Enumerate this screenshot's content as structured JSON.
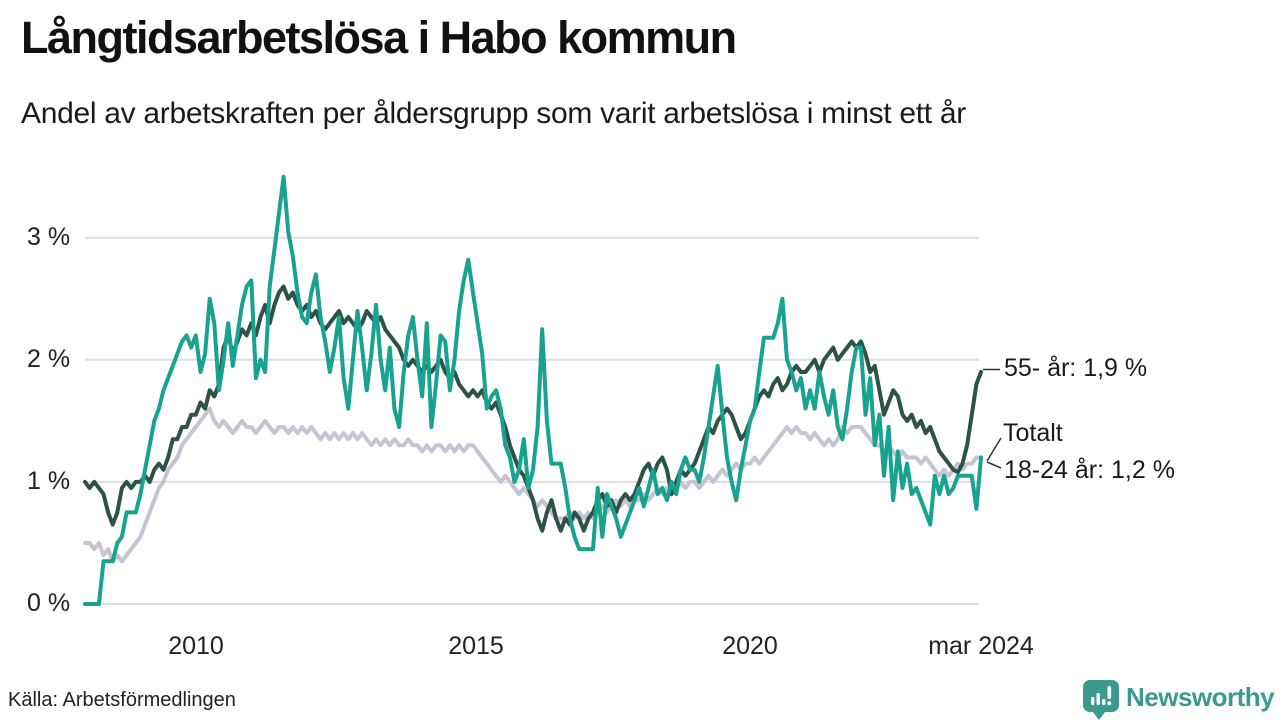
{
  "header": {
    "title": "Långtidsarbetslösa i Habo kommun",
    "subtitle": "Andel av arbetskraften per åldersgrupp som varit arbetslösa i minst ett år"
  },
  "footer": {
    "source": "Källa: Arbetsförmedlingen",
    "brand": "Newsworthy",
    "brand_color": "#3B9A8F"
  },
  "chart_data": {
    "type": "line",
    "title": "Långtidsarbetslösa i Habo kommun",
    "subtitle": "Andel av arbetskraften per åldersgrupp som varit arbetslösa i minst ett år",
    "x_start": "2008-01",
    "x_end": "2024-03",
    "x_interval": "month",
    "ylim": [
      0,
      3.6
    ],
    "grid": true,
    "legend_position": "right-edge-annotations",
    "colors": {
      "grid": "#dedede",
      "tick_text": "#222222",
      "annotation_text": "#1a1a1a"
    },
    "yticks": [
      {
        "value": 3,
        "label": "3 %"
      },
      {
        "value": 2,
        "label": "2 %"
      },
      {
        "value": 1,
        "label": "1 %"
      },
      {
        "value": 0,
        "label": "0 %"
      }
    ],
    "xticks": [
      {
        "label": "2010"
      },
      {
        "label": "2015"
      },
      {
        "label": "2020"
      },
      {
        "label": "mar 2024"
      }
    ],
    "annotations": [
      {
        "label": "55- år: 1,9 %",
        "series": "55- år",
        "end_value": "1,9 %"
      },
      {
        "label": "Totalt",
        "series": "Totalt"
      },
      {
        "label": "18-24 år: 1,2 %",
        "series": "18-24 år",
        "end_value": "1,2 %"
      }
    ],
    "series": [
      {
        "name": "Totalt",
        "color": "#C6C4D2",
        "values": [
          0.5,
          0.5,
          0.45,
          0.5,
          0.4,
          0.45,
          0.35,
          0.4,
          0.35,
          0.4,
          0.45,
          0.5,
          0.55,
          0.65,
          0.75,
          0.85,
          0.95,
          1.0,
          1.1,
          1.15,
          1.2,
          1.3,
          1.35,
          1.4,
          1.45,
          1.5,
          1.55,
          1.6,
          1.5,
          1.45,
          1.5,
          1.45,
          1.4,
          1.45,
          1.5,
          1.45,
          1.45,
          1.4,
          1.45,
          1.5,
          1.45,
          1.4,
          1.45,
          1.45,
          1.4,
          1.45,
          1.4,
          1.45,
          1.4,
          1.45,
          1.4,
          1.35,
          1.4,
          1.35,
          1.4,
          1.35,
          1.4,
          1.35,
          1.4,
          1.35,
          1.4,
          1.35,
          1.3,
          1.35,
          1.3,
          1.35,
          1.3,
          1.35,
          1.3,
          1.3,
          1.35,
          1.3,
          1.3,
          1.25,
          1.3,
          1.25,
          1.3,
          1.3,
          1.25,
          1.3,
          1.25,
          1.3,
          1.25,
          1.3,
          1.3,
          1.25,
          1.2,
          1.15,
          1.1,
          1.05,
          1.0,
          1.05,
          1.0,
          0.95,
          0.9,
          0.95,
          0.9,
          0.85,
          0.8,
          0.85,
          0.8,
          0.75,
          0.7,
          0.7,
          0.7,
          0.75,
          0.7,
          0.75,
          0.7,
          0.75,
          0.7,
          0.75,
          0.8,
          0.75,
          0.8,
          0.85,
          0.8,
          0.85,
          0.8,
          0.85,
          0.85,
          0.9,
          0.85,
          0.9,
          0.95,
          0.9,
          0.95,
          0.9,
          0.95,
          1.0,
          0.95,
          1.0,
          1.0,
          0.95,
          1.0,
          1.05,
          1.0,
          1.05,
          1.1,
          1.05,
          1.1,
          1.15,
          1.1,
          1.15,
          1.15,
          1.2,
          1.15,
          1.2,
          1.25,
          1.3,
          1.35,
          1.4,
          1.45,
          1.4,
          1.45,
          1.4,
          1.4,
          1.35,
          1.4,
          1.35,
          1.3,
          1.35,
          1.3,
          1.35,
          1.45,
          1.4,
          1.45,
          1.45,
          1.45,
          1.4,
          1.35,
          1.3,
          1.3,
          1.25,
          1.3,
          1.25,
          1.2,
          1.25,
          1.2,
          1.2,
          1.2,
          1.15,
          1.2,
          1.15,
          1.1,
          1.05,
          1.1,
          1.05,
          1.1,
          1.15,
          1.1,
          1.15,
          1.15,
          1.2,
          1.2
        ]
      },
      {
        "name": "55- år",
        "color": "#2D5246",
        "values": [
          1.0,
          0.95,
          1.0,
          0.95,
          0.9,
          0.75,
          0.65,
          0.75,
          0.95,
          1.0,
          0.95,
          1.0,
          1.0,
          1.05,
          1.0,
          1.1,
          1.15,
          1.1,
          1.2,
          1.35,
          1.35,
          1.45,
          1.45,
          1.55,
          1.55,
          1.65,
          1.6,
          1.75,
          1.7,
          1.8,
          2.1,
          2.2,
          2.05,
          2.15,
          2.25,
          2.2,
          2.3,
          2.2,
          2.35,
          2.45,
          2.3,
          2.45,
          2.55,
          2.6,
          2.5,
          2.55,
          2.45,
          2.4,
          2.45,
          2.35,
          2.4,
          2.3,
          2.25,
          2.3,
          2.35,
          2.4,
          2.3,
          2.35,
          2.3,
          2.25,
          2.3,
          2.4,
          2.35,
          2.3,
          2.35,
          2.25,
          2.2,
          2.15,
          2.1,
          2.0,
          1.95,
          2.0,
          1.95,
          1.9,
          1.95,
          1.9,
          1.95,
          2.0,
          1.9,
          1.85,
          1.9,
          1.8,
          1.75,
          1.7,
          1.75,
          1.7,
          1.75,
          1.65,
          1.6,
          1.65,
          1.55,
          1.45,
          1.3,
          1.2,
          1.1,
          1.05,
          0.95,
          0.85,
          0.7,
          0.6,
          0.75,
          0.85,
          0.7,
          0.6,
          0.7,
          0.65,
          0.75,
          0.7,
          0.6,
          0.7,
          0.75,
          0.85,
          0.9,
          0.8,
          0.85,
          0.75,
          0.85,
          0.9,
          0.85,
          0.9,
          1.0,
          1.1,
          1.15,
          1.05,
          1.15,
          1.2,
          1.1,
          0.9,
          1.0,
          1.1,
          1.05,
          1.1,
          1.15,
          1.25,
          1.35,
          1.45,
          1.4,
          1.5,
          1.55,
          1.6,
          1.55,
          1.45,
          1.35,
          1.4,
          1.5,
          1.6,
          1.7,
          1.75,
          1.7,
          1.8,
          1.85,
          1.75,
          1.8,
          1.9,
          1.95,
          1.9,
          1.9,
          1.95,
          2.0,
          1.9,
          2.0,
          2.05,
          2.1,
          2.0,
          2.05,
          2.1,
          2.15,
          2.1,
          2.15,
          2.05,
          1.9,
          1.95,
          1.75,
          1.55,
          1.65,
          1.75,
          1.7,
          1.55,
          1.5,
          1.55,
          1.45,
          1.5,
          1.4,
          1.45,
          1.35,
          1.25,
          1.2,
          1.15,
          1.1,
          1.08,
          1.15,
          1.3,
          1.55,
          1.8,
          1.9
        ]
      },
      {
        "name": "18-24 år",
        "color": "#17A38F",
        "values": [
          0.0,
          0.0,
          0.0,
          0.0,
          0.35,
          0.35,
          0.35,
          0.5,
          0.55,
          0.75,
          0.75,
          0.75,
          0.9,
          1.1,
          1.3,
          1.5,
          1.6,
          1.75,
          1.85,
          1.95,
          2.05,
          2.15,
          2.2,
          2.1,
          2.2,
          1.9,
          2.05,
          2.5,
          2.3,
          1.75,
          2.0,
          2.3,
          1.95,
          2.2,
          2.45,
          2.6,
          2.65,
          1.85,
          2.0,
          1.9,
          2.6,
          2.9,
          3.2,
          3.5,
          3.05,
          2.85,
          2.55,
          2.35,
          2.3,
          2.55,
          2.7,
          2.35,
          2.15,
          1.9,
          2.1,
          2.35,
          1.85,
          1.6,
          2.0,
          2.4,
          2.1,
          1.75,
          2.05,
          2.45,
          2.0,
          1.75,
          2.1,
          1.6,
          1.45,
          1.9,
          2.2,
          2.35,
          2.0,
          1.7,
          2.3,
          1.45,
          1.8,
          2.2,
          2.15,
          1.75,
          2.0,
          2.4,
          2.65,
          2.82,
          2.55,
          2.3,
          2.05,
          1.6,
          1.7,
          1.75,
          1.6,
          1.3,
          1.2,
          1.0,
          1.1,
          1.35,
          0.95,
          1.1,
          1.45,
          2.25,
          1.5,
          1.15,
          1.15,
          1.15,
          0.95,
          0.7,
          0.55,
          0.45,
          0.45,
          0.45,
          0.45,
          0.95,
          0.55,
          0.9,
          0.8,
          0.7,
          0.55,
          0.65,
          0.75,
          0.85,
          0.95,
          0.8,
          0.95,
          1.1,
          0.9,
          0.95,
          0.85,
          1.0,
          0.9,
          1.1,
          1.2,
          1.1,
          1.1,
          1.0,
          1.2,
          1.45,
          1.7,
          1.95,
          1.55,
          1.2,
          1.0,
          0.85,
          1.1,
          1.3,
          1.5,
          1.6,
          1.9,
          2.18,
          2.18,
          2.18,
          2.3,
          2.5,
          2.0,
          1.9,
          1.75,
          1.85,
          1.6,
          1.75,
          1.6,
          1.9,
          1.7,
          1.55,
          1.75,
          1.45,
          1.35,
          1.6,
          1.9,
          2.1,
          2.1,
          1.55,
          1.85,
          1.3,
          1.55,
          1.05,
          1.45,
          0.85,
          1.25,
          0.95,
          1.15,
          0.9,
          0.95,
          0.85,
          0.75,
          0.65,
          1.05,
          0.9,
          1.05,
          0.9,
          0.95,
          1.05,
          1.05,
          1.05,
          1.05,
          0.78,
          1.2
        ]
      }
    ]
  }
}
